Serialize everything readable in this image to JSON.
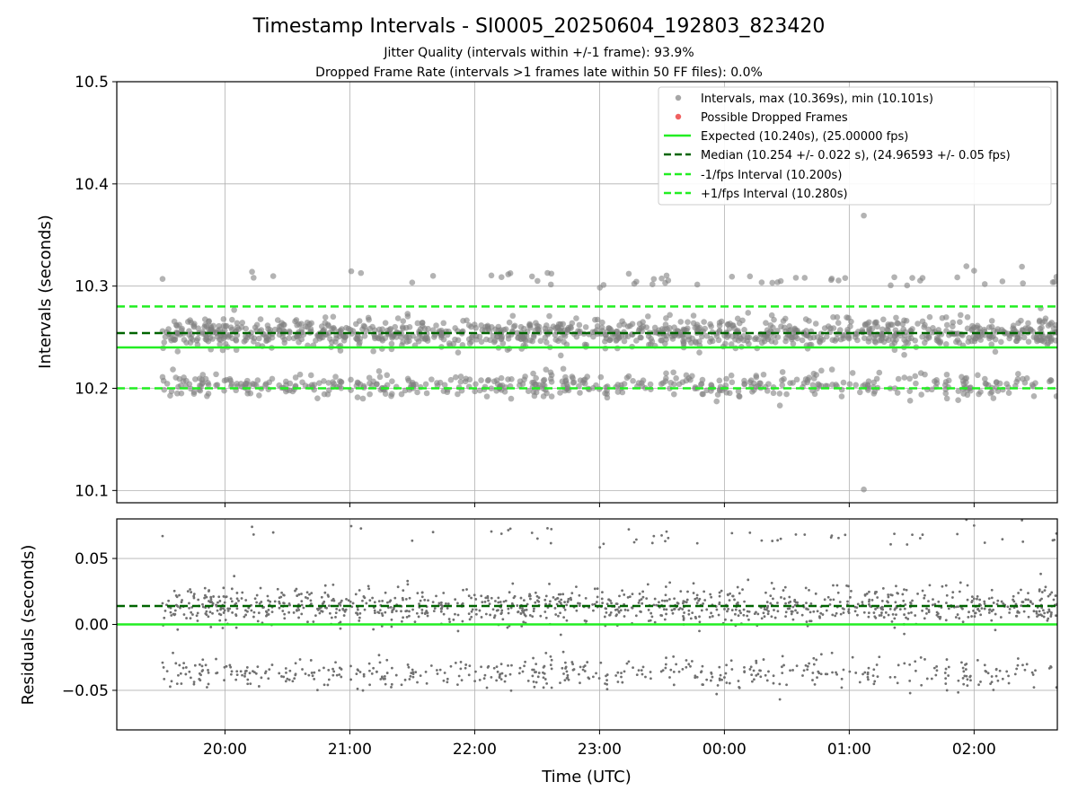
{
  "chart_data": {
    "type": "scatter",
    "title": "Timestamp Intervals - SI0005_20250604_192803_823420",
    "subtitle_lines": [
      "Jitter Quality (intervals within +/-1 frame): 93.9%",
      "Dropped Frame Rate (intervals >1 frames late within 50 FF files): 0.0%"
    ],
    "xlabel": "Time (UTC)",
    "x_axis": {
      "type": "time",
      "start": "2025-06-04T19:08:00",
      "end": "2025-06-05T02:40:00",
      "tick_labels": [
        "20:00",
        "21:00",
        "22:00",
        "23:00",
        "00:00",
        "01:00",
        "02:00"
      ],
      "tick_times": [
        "2025-06-04T20:00:00",
        "2025-06-04T21:00:00",
        "2025-06-04T22:00:00",
        "2025-06-04T23:00:00",
        "2025-06-05T00:00:00",
        "2025-06-05T01:00:00",
        "2025-06-05T02:00:00"
      ]
    },
    "grid": true,
    "legend_position": "upper right",
    "top_panel": {
      "ylabel": "Intervals (seconds)",
      "ylim": [
        10.088,
        10.5
      ],
      "yticks": [
        10.1,
        10.2,
        10.3,
        10.4,
        10.5
      ],
      "ytick_labels": [
        "10.1",
        "10.2",
        "10.3",
        "10.4",
        "10.5"
      ],
      "series": [
        {
          "name": "Intervals, max (10.369s), min (10.101s)",
          "kind": "scatter",
          "color": "#808080",
          "points_sample": [
            {
              "t": "2025-06-04T19:30:00",
              "y": 10.256
            },
            {
              "t": "2025-06-04T19:30:00",
              "y": 10.211
            },
            {
              "t": "2025-06-04T19:30:00",
              "y": 10.307
            },
            {
              "t": "2025-06-04T20:13:00",
              "y": 10.314
            },
            {
              "t": "2025-06-04T21:40:00",
              "y": 10.31
            },
            {
              "t": "2025-06-04T22:37:00",
              "y": 10.192
            },
            {
              "t": "2025-06-05T01:07:00",
              "y": 10.369
            },
            {
              "t": "2025-06-05T01:07:00",
              "y": 10.101
            },
            {
              "t": "2025-06-05T02:00:00",
              "y": 10.315
            },
            {
              "t": "2025-06-05T02:23:00",
              "y": 10.319
            }
          ]
        },
        {
          "name": "Possible Dropped Frames",
          "kind": "scatter",
          "color": "#f06060",
          "points_sample": []
        },
        {
          "name": "Expected (10.240s), (25.00000 fps)",
          "kind": "hline",
          "value": 10.24,
          "color": "#22ee22",
          "style": "solid"
        },
        {
          "name": "Median (10.254 +/- 0.022 s), (24.96593 +/- 0.05 fps)",
          "kind": "hline",
          "value": 10.254,
          "color": "#006400",
          "style": "dashed"
        },
        {
          "name": "-1/fps Interval (10.200s)",
          "kind": "hline",
          "value": 10.2,
          "color": "#22ee22",
          "style": "dashed"
        },
        {
          "name": "+1/fps Interval (10.280s)",
          "kind": "hline",
          "value": 10.28,
          "color": "#22ee22",
          "style": "dashed"
        }
      ]
    },
    "bottom_panel": {
      "ylabel": "Residuals (seconds)",
      "ylim": [
        -0.08,
        0.08
      ],
      "yticks": [
        -0.05,
        0.0,
        0.05
      ],
      "ytick_labels": [
        "−0.05",
        "0.00",
        "0.05"
      ],
      "series": [
        {
          "name": "Residuals",
          "kind": "scatter",
          "color": "#808080"
        },
        {
          "name": "Expected",
          "kind": "hline",
          "value": 0.0,
          "color": "#22ee22",
          "style": "solid"
        },
        {
          "name": "Median",
          "kind": "hline",
          "value": 0.014,
          "color": "#006400",
          "style": "dashed"
        }
      ]
    },
    "scatter_model": {
      "count": 1600,
      "fraction_main_band": 0.68,
      "main_band": {
        "center": 10.254,
        "spread": 0.007
      },
      "lower_band": {
        "center": 10.203,
        "spread": 0.006
      },
      "high_cluster": {
        "center": 10.306,
        "spread": 0.004
      },
      "fraction_high_cluster": 0.03,
      "dense_start": "2025-06-04T19:30:00",
      "dense_end": "2025-06-05T02:40:00"
    }
  }
}
